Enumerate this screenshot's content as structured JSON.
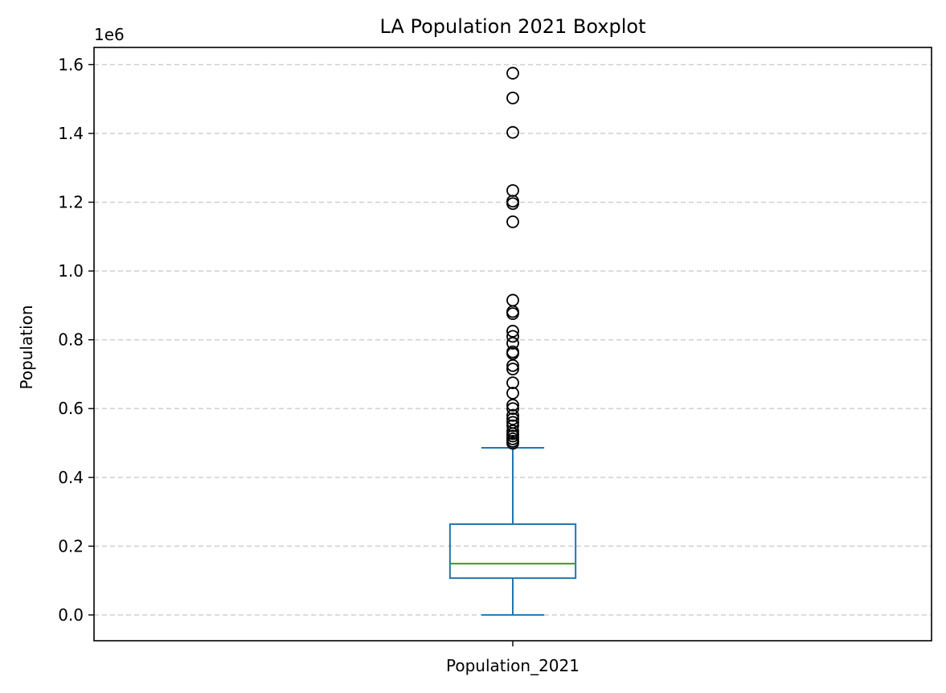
{
  "chart_data": {
    "type": "boxplot",
    "title": "LA Population 2021 Boxplot",
    "xlabel": "",
    "ylabel": "Population",
    "y_scale_label": "1e6",
    "ylim": [
      -0.075,
      1.65
    ],
    "yticks": [
      0.0,
      0.2,
      0.4,
      0.6,
      0.8,
      1.0,
      1.2,
      1.4,
      1.6
    ],
    "ytick_labels": [
      "0.0",
      "0.2",
      "0.4",
      "0.6",
      "0.8",
      "1.0",
      "1.2",
      "1.4",
      "1.6"
    ],
    "grid": "y-dashed",
    "categories": [
      "Population_2021"
    ],
    "boxes": [
      {
        "category": "Population_2021",
        "whisker_low": 0.0,
        "q1": 0.107,
        "median": 0.149,
        "q3": 0.264,
        "whisker_high": 0.486,
        "outliers": [
          0.499,
          0.505,
          0.512,
          0.52,
          0.527,
          0.535,
          0.55,
          0.56,
          0.57,
          0.58,
          0.6,
          0.61,
          0.645,
          0.675,
          0.715,
          0.725,
          0.76,
          0.765,
          0.79,
          0.81,
          0.825,
          0.876,
          0.882,
          0.915,
          1.143,
          1.196,
          1.203,
          1.234,
          1.403,
          1.503,
          1.575
        ]
      }
    ],
    "colors": {
      "box": "#1f77b4",
      "median": "#2ca02c",
      "outlier": "#000000",
      "grid": "#cccccc"
    }
  }
}
